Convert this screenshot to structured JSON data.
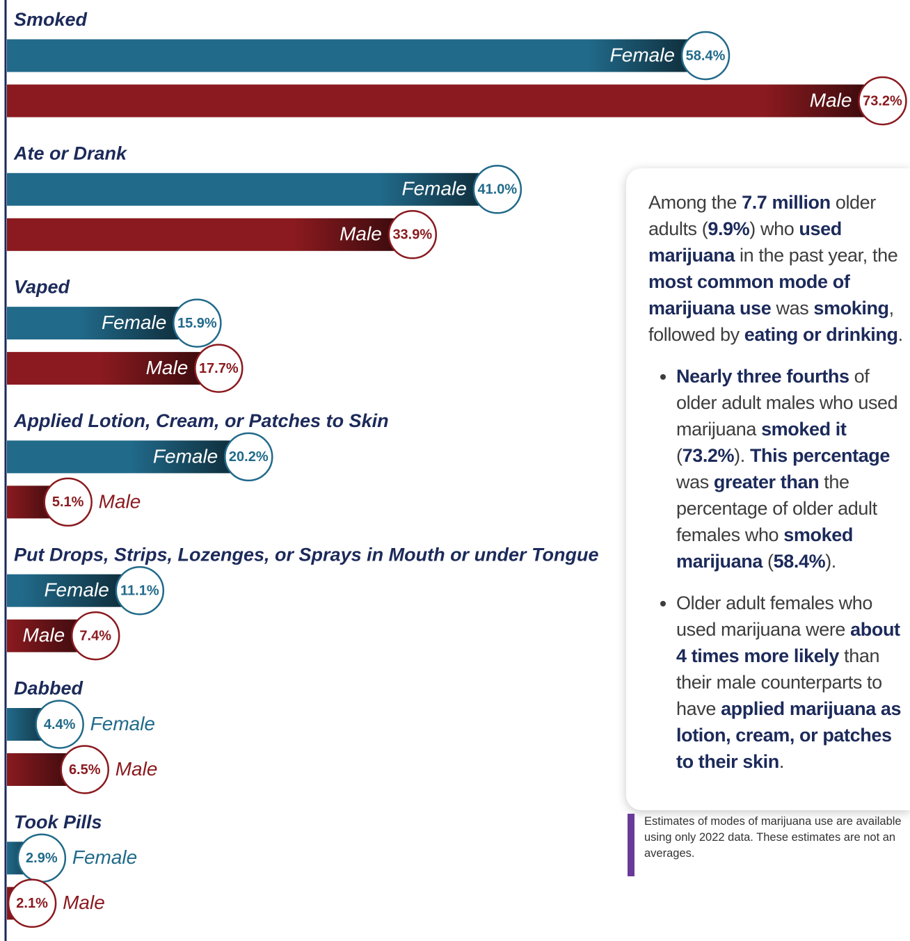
{
  "chart_data": {
    "type": "bar",
    "orientation": "horizontal",
    "categories": [
      "Smoked",
      "Ate or Drank",
      "Vaped",
      "Applied Lotion, Cream, or Patches to Skin",
      "Put Drops, Strips, Lozenges, or Sprays in Mouth or under Tongue",
      "Dabbed",
      "Took Pills"
    ],
    "series": [
      {
        "name": "Female",
        "color": "#216a8a",
        "values": [
          58.4,
          41.0,
          15.9,
          20.2,
          11.1,
          4.4,
          2.9
        ],
        "value_labels": [
          "58.4%",
          "41.0%",
          "15.9%",
          "20.2%",
          "11.1%",
          "4.4%",
          "2.9%"
        ]
      },
      {
        "name": "Male",
        "color": "#8a1a1f",
        "values": [
          73.2,
          33.9,
          17.7,
          5.1,
          7.4,
          6.5,
          2.1
        ],
        "value_labels": [
          "73.2%",
          "33.9%",
          "17.7%",
          "5.1%",
          "7.4%",
          "6.5%",
          "2.1%"
        ]
      }
    ],
    "xlim": [
      0,
      75.5
    ]
  },
  "callout": {
    "paragraph": [
      {
        "text": "Among the ",
        "bold": false
      },
      {
        "text": "7.7 million",
        "bold": true
      },
      {
        "text": " older adults (",
        "bold": false
      },
      {
        "text": "9.9%",
        "bold": true
      },
      {
        "text": ") who ",
        "bold": false
      },
      {
        "text": "used marijuana",
        "bold": true
      },
      {
        "text": " in the past year, the ",
        "bold": false
      },
      {
        "text": "most common mode of marijuana use",
        "bold": true
      },
      {
        "text": " was ",
        "bold": false
      },
      {
        "text": "smoking",
        "bold": true
      },
      {
        "text": ", followed by ",
        "bold": false
      },
      {
        "text": "eating or drinking",
        "bold": true
      },
      {
        "text": ".",
        "bold": false
      }
    ],
    "bullets": [
      [
        {
          "text": "Nearly three fourths",
          "bold": true
        },
        {
          "text": " of older adult males who used marijuana ",
          "bold": false
        },
        {
          "text": "smoked it",
          "bold": true
        },
        {
          "text": " (",
          "bold": false
        },
        {
          "text": "73.2%",
          "bold": true
        },
        {
          "text": "). ",
          "bold": false
        },
        {
          "text": "This percentage",
          "bold": true
        },
        {
          "text": " was ",
          "bold": false
        },
        {
          "text": "greater than",
          "bold": true
        },
        {
          "text": " the percentage of older adult females who ",
          "bold": false
        },
        {
          "text": "smoked marijuana",
          "bold": true
        },
        {
          "text": " (",
          "bold": false
        },
        {
          "text": "58.4%",
          "bold": true
        },
        {
          "text": ").",
          "bold": false
        }
      ],
      [
        {
          "text": "Older adult females who used marijuana were ",
          "bold": false
        },
        {
          "text": "about 4 times more likely",
          "bold": true
        },
        {
          "text": " than their male counterparts to have ",
          "bold": false
        },
        {
          "text": "applied marijuana as lotion, cream, or patches to their skin",
          "bold": true
        },
        {
          "text": ".",
          "bold": false
        }
      ]
    ]
  },
  "footnote": "Estimates of modes of marijuana use are available using only 2022 data. These estimates are not an averages."
}
